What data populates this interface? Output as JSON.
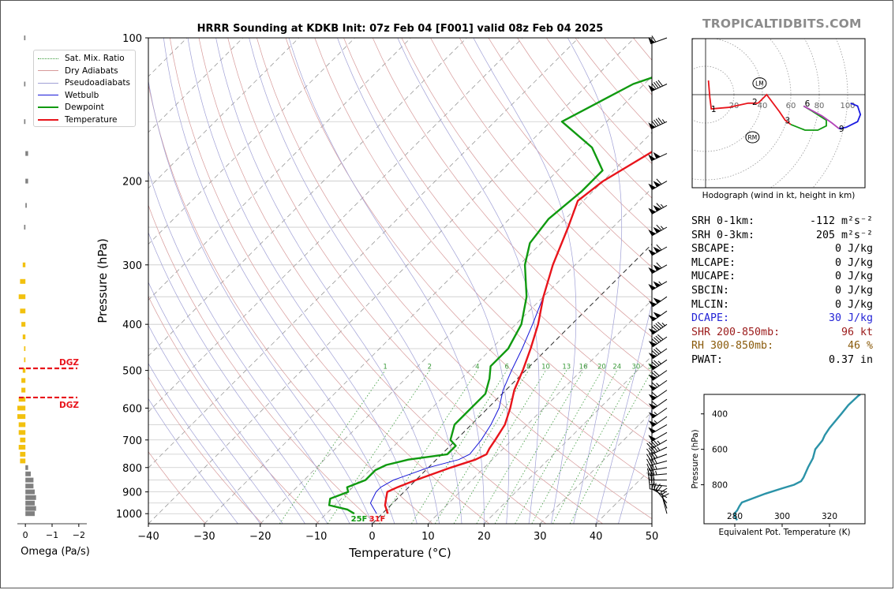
{
  "watermark": "TROPICALTIDBITS.COM",
  "chart_data": [
    {
      "type": "line",
      "title": "HRRR Sounding at KDKB Init: 07z Feb 04 [F001] valid 08z Feb 04 2025",
      "xlabel": "Temperature (°C)",
      "ylabel": "Pressure (hPa)",
      "xlim": [
        -40,
        50
      ],
      "ylim": [
        1050,
        100
      ],
      "y_log_scale": true,
      "skew_t": true,
      "x_ticks": [
        "−40",
        "−30",
        "−20",
        "−10",
        "0",
        "10",
        "20",
        "30",
        "40",
        "50"
      ],
      "y_ticks": [
        "100",
        "200",
        "300",
        "400",
        "500",
        "600",
        "700",
        "800",
        "900",
        "1000"
      ],
      "legend": {
        "placement": "top-left",
        "entries": [
          "Sat. Mix. Ratio",
          "Dry Adiabats",
          "Pseudoadiabats",
          "Wetbulb",
          "Dewpoint",
          "Temperature"
        ]
      },
      "mixing_ratio_labels": [
        "1",
        "2",
        "4",
        "6",
        "8",
        "10",
        "13",
        "16",
        "20",
        "24",
        "30",
        "36"
      ],
      "surface_labels": {
        "dewpoint": "25F",
        "temperature": "31F"
      },
      "series": [
        {
          "name": "Temperature",
          "color": "#e8141b",
          "points": [
            [
              1000,
              1
            ],
            [
              960,
              -1
            ],
            [
              930,
              -2
            ],
            [
              900,
              -3
            ],
            [
              880,
              -2
            ],
            [
              850,
              0
            ],
            [
              800,
              4
            ],
            [
              770,
              7
            ],
            [
              750,
              8
            ],
            [
              730,
              7.5
            ],
            [
              700,
              7
            ],
            [
              650,
              6
            ],
            [
              600,
              4
            ],
            [
              550,
              1.5
            ],
            [
              500,
              -0.5
            ],
            [
              450,
              -3
            ],
            [
              400,
              -6
            ],
            [
              350,
              -10
            ],
            [
              300,
              -14
            ],
            [
              250,
              -18
            ],
            [
              220,
              -21
            ],
            [
              200,
              -20
            ],
            [
              170,
              -16
            ],
            [
              150,
              -13
            ],
            [
              130,
              -14
            ],
            [
              100,
              -7
            ]
          ]
        },
        {
          "name": "Dewpoint",
          "color": "#109a10",
          "points": [
            [
              1000,
              -5
            ],
            [
              980,
              -7
            ],
            [
              960,
              -11
            ],
            [
              930,
              -12
            ],
            [
              900,
              -10
            ],
            [
              880,
              -11
            ],
            [
              850,
              -9
            ],
            [
              810,
              -9
            ],
            [
              790,
              -8
            ],
            [
              770,
              -5
            ],
            [
              750,
              1
            ],
            [
              720,
              1
            ],
            [
              700,
              -1
            ],
            [
              650,
              -3
            ],
            [
              600,
              -3
            ],
            [
              560,
              -3
            ],
            [
              520,
              -5
            ],
            [
              490,
              -7
            ],
            [
              450,
              -7
            ],
            [
              400,
              -9
            ],
            [
              350,
              -13
            ],
            [
              300,
              -19
            ],
            [
              270,
              -22
            ],
            [
              240,
              -23
            ],
            [
              210,
              -22
            ],
            [
              190,
              -22
            ],
            [
              170,
              -28
            ],
            [
              150,
              -38
            ],
            [
              125,
              -32
            ],
            [
              115,
              -26
            ],
            [
              100,
              -21
            ]
          ]
        },
        {
          "name": "Wetbulb",
          "color": "#1616d8",
          "points": [
            [
              1000,
              -1
            ],
            [
              950,
              -4
            ],
            [
              900,
              -5
            ],
            [
              880,
              -5
            ],
            [
              850,
              -4
            ],
            [
              800,
              0
            ],
            [
              770,
              4
            ],
            [
              750,
              5
            ],
            [
              700,
              4.5
            ],
            [
              650,
              3.5
            ],
            [
              600,
              2
            ],
            [
              550,
              -0.5
            ],
            [
              500,
              -2.5
            ],
            [
              450,
              -4.5
            ],
            [
              400,
              -7
            ],
            [
              350,
              -10
            ],
            [
              300,
              -14
            ],
            [
              250,
              -18
            ],
            [
              220,
              -21
            ],
            [
              200,
              -20
            ],
            [
              170,
              -16
            ],
            [
              150,
              -13
            ],
            [
              130,
              -14
            ],
            [
              100,
              -7
            ]
          ]
        }
      ]
    },
    {
      "type": "bar",
      "xlabel": "Omega (Pa/s)",
      "x_ticks": [
        "0",
        "−1",
        "−2"
      ],
      "xlim": [
        0.3,
        -2.3
      ],
      "dgz_label": "DGZ",
      "dgz_levels_hpa": [
        495,
        570
      ],
      "omega": [
        [
          1000,
          -0.35
        ],
        [
          975,
          -0.4
        ],
        [
          950,
          -0.35
        ],
        [
          925,
          -0.4
        ],
        [
          900,
          -0.35
        ],
        [
          875,
          -0.3
        ],
        [
          850,
          -0.3
        ],
        [
          825,
          -0.2
        ],
        [
          800,
          -0.1
        ],
        [
          775,
          0.2
        ],
        [
          750,
          0.2
        ],
        [
          725,
          0.25
        ],
        [
          700,
          0.2
        ],
        [
          675,
          0.25
        ],
        [
          650,
          0.25
        ],
        [
          625,
          0.3
        ],
        [
          600,
          0.3
        ],
        [
          575,
          0.25
        ],
        [
          550,
          0.15
        ],
        [
          525,
          0.15
        ],
        [
          500,
          0.1
        ],
        [
          475,
          0.05
        ],
        [
          450,
          0.05
        ],
        [
          425,
          0.1
        ],
        [
          400,
          0.15
        ],
        [
          375,
          0.2
        ],
        [
          350,
          0.25
        ],
        [
          325,
          0.2
        ],
        [
          300,
          0.1
        ],
        [
          250,
          0.05
        ],
        [
          225,
          -0.05
        ],
        [
          200,
          -0.1
        ],
        [
          175,
          -0.1
        ],
        [
          150,
          0.05
        ],
        [
          125,
          0.05
        ],
        [
          100,
          0.05
        ]
      ],
      "omega_dgz_color": "#f2c10f",
      "omega_other_color": "#808080"
    },
    {
      "type": "line",
      "title": "Hodograph (wind in kt, height in km)",
      "ring_labels": [
        "20",
        "40",
        "60",
        "80",
        "100"
      ],
      "height_labels": [
        "1",
        "2",
        "3",
        "6",
        "9"
      ],
      "storm_motion_labels": [
        "LM",
        "RM"
      ],
      "segments": [
        {
          "color": "#e8141b",
          "points": [
            [
              2,
              10
            ],
            [
              3,
              -2
            ],
            [
              4,
              -10
            ],
            [
              16,
              -9
            ],
            [
              30,
              -6
            ],
            [
              37,
              -6
            ]
          ]
        },
        {
          "color": "#e8141b",
          "points": [
            [
              37,
              -6
            ],
            [
              43,
              0
            ],
            [
              52,
              -12
            ],
            [
              56,
              -18
            ],
            [
              60,
              -21
            ]
          ]
        },
        {
          "color": "#109a10",
          "points": [
            [
              60,
              -21
            ],
            [
              70,
              -25
            ],
            [
              79,
              -25
            ],
            [
              85,
              -22
            ],
            [
              85,
              -18
            ],
            [
              74,
              -11
            ],
            [
              69,
              -8
            ]
          ]
        },
        {
          "color": "#b342b8",
          "points": [
            [
              69,
              -8
            ],
            [
              82,
              -15
            ],
            [
              89,
              -20
            ],
            [
              94,
              -24
            ]
          ]
        },
        {
          "color": "#1a1ae0",
          "points": [
            [
              94,
              -24
            ],
            [
              99,
              -23
            ],
            [
              107,
              -19
            ],
            [
              109,
              -14
            ],
            [
              107,
              -8
            ],
            [
              102,
              -6
            ]
          ]
        }
      ],
      "storm_motion": {
        "LM": [
          38,
          8
        ],
        "RM": [
          33,
          -30
        ]
      }
    },
    {
      "type": "line",
      "xlabel": "Equivalent Pot. Temperature (K)",
      "ylabel": "Pressure (hPa)",
      "x_ticks": [
        "280",
        "300",
        "320"
      ],
      "y_ticks": [
        "400",
        "600",
        "800"
      ],
      "xlim": [
        267,
        335
      ],
      "ylim": [
        1020,
        290
      ],
      "series": [
        {
          "color": "#2b93a8",
          "points": [
            [
              1000,
              281
            ],
            [
              980,
              280
            ],
            [
              960,
              280
            ],
            [
              945,
              281
            ],
            [
              920,
              282
            ],
            [
              900,
              283
            ],
            [
              880,
              287
            ],
            [
              850,
              293
            ],
            [
              820,
              300
            ],
            [
              800,
              305
            ],
            [
              780,
              308
            ],
            [
              760,
              309
            ],
            [
              700,
              311
            ],
            [
              650,
              313
            ],
            [
              600,
              314
            ],
            [
              550,
              317
            ],
            [
              520,
              318
            ],
            [
              480,
              320
            ],
            [
              400,
              325
            ],
            [
              350,
              328
            ],
            [
              300,
              332
            ],
            [
              290,
              333
            ]
          ]
        }
      ]
    }
  ],
  "wind_barbs": [
    [
      1000,
      345,
      10
    ],
    [
      975,
      340,
      15
    ],
    [
      950,
      320,
      20
    ],
    [
      925,
      300,
      25
    ],
    [
      900,
      280,
      25
    ],
    [
      875,
      275,
      30
    ],
    [
      850,
      270,
      30
    ],
    [
      825,
      265,
      35
    ],
    [
      800,
      260,
      35
    ],
    [
      775,
      255,
      40
    ],
    [
      750,
      250,
      40
    ],
    [
      725,
      245,
      45
    ],
    [
      700,
      240,
      45
    ],
    [
      675,
      240,
      50
    ],
    [
      650,
      240,
      50
    ],
    [
      625,
      235,
      55
    ],
    [
      600,
      235,
      55
    ],
    [
      575,
      235,
      60
    ],
    [
      550,
      235,
      60
    ],
    [
      525,
      235,
      65
    ],
    [
      500,
      235,
      70
    ],
    [
      475,
      235,
      75
    ],
    [
      450,
      235,
      80
    ],
    [
      425,
      235,
      90
    ],
    [
      400,
      235,
      95
    ],
    [
      375,
      235,
      100
    ],
    [
      350,
      235,
      100
    ],
    [
      325,
      240,
      105
    ],
    [
      300,
      240,
      110
    ],
    [
      275,
      240,
      110
    ],
    [
      250,
      240,
      115
    ],
    [
      225,
      240,
      115
    ],
    [
      200,
      240,
      110
    ],
    [
      175,
      245,
      100
    ],
    [
      150,
      245,
      95
    ],
    [
      125,
      245,
      90
    ],
    [
      100,
      250,
      60
    ]
  ],
  "stats": [
    {
      "label": "SRH 0-1km:",
      "value": "-112 m²s⁻²",
      "color": "#000000"
    },
    {
      "label": "SRH 0-3km:",
      "value": "205 m²s⁻²",
      "color": "#000000"
    },
    {
      "label": "SBCAPE:",
      "value": "0 J/kg",
      "color": "#000000"
    },
    {
      "label": "MLCAPE:",
      "value": "0 J/kg",
      "color": "#000000"
    },
    {
      "label": "MUCAPE:",
      "value": "0 J/kg",
      "color": "#000000"
    },
    {
      "label": "SBCIN:",
      "value": "0 J/kg",
      "color": "#000000"
    },
    {
      "label": "MLCIN:",
      "value": "0 J/kg",
      "color": "#000000"
    },
    {
      "label": "DCAPE:",
      "value": "30 J/kg",
      "color": "#2323d6"
    },
    {
      "label": "SHR 200-850mb:",
      "value": "96 kt",
      "color": "#9b1b1b"
    },
    {
      "label": "RH 300-850mb:",
      "value": "46 %",
      "color": "#8a5a0a"
    },
    {
      "label": "PWAT:",
      "value": "0.37 in",
      "color": "#000000"
    }
  ]
}
